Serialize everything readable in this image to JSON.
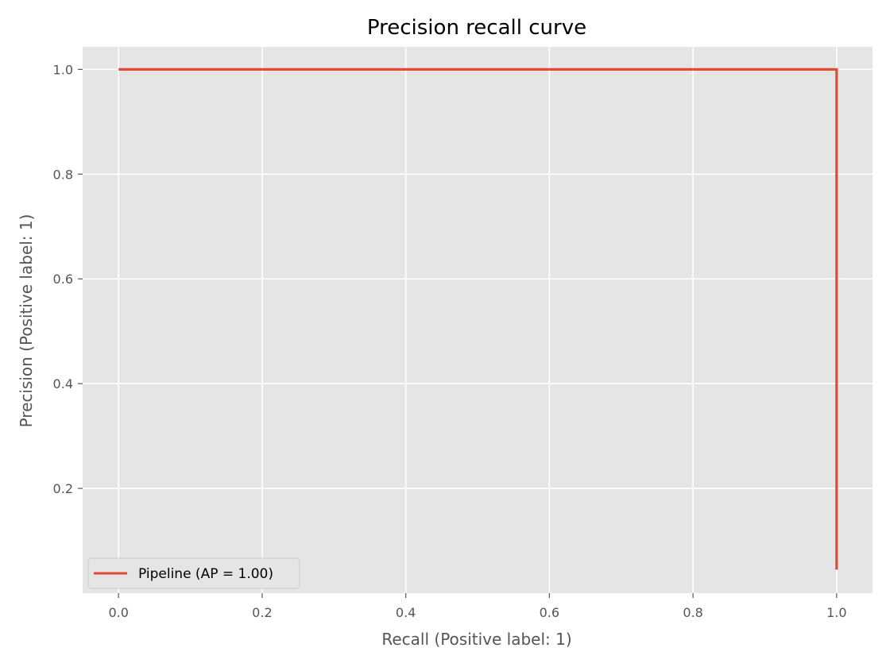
{
  "chart_data": {
    "type": "line",
    "title": "Precision recall curve",
    "xlabel": "Recall (Positive label: 1)",
    "ylabel": "Precision (Positive label: 1)",
    "xlim": [
      -0.05,
      1.05
    ],
    "ylim": [
      0.0,
      1.043
    ],
    "xticks": [
      0.0,
      0.2,
      0.4,
      0.6,
      0.8,
      1.0
    ],
    "xtick_labels": [
      "0.0",
      "0.2",
      "0.4",
      "0.6",
      "0.8",
      "1.0"
    ],
    "yticks": [
      0.2,
      0.4,
      0.6,
      0.8,
      1.0
    ],
    "ytick_labels": [
      "0.2",
      "0.4",
      "0.6",
      "0.8",
      "1.0"
    ],
    "grid": true,
    "legend_position": "lower-left",
    "step": true,
    "series": [
      {
        "name": "Pipeline (AP = 1.00)",
        "color": "#e24a33",
        "x": [
          0.0,
          1.0,
          1.0
        ],
        "y": [
          1.0,
          1.0,
          0.045
        ]
      }
    ]
  },
  "style": {
    "axes_background": "#e5e5e5",
    "grid_color": "#ffffff",
    "text_color": "#555555"
  }
}
